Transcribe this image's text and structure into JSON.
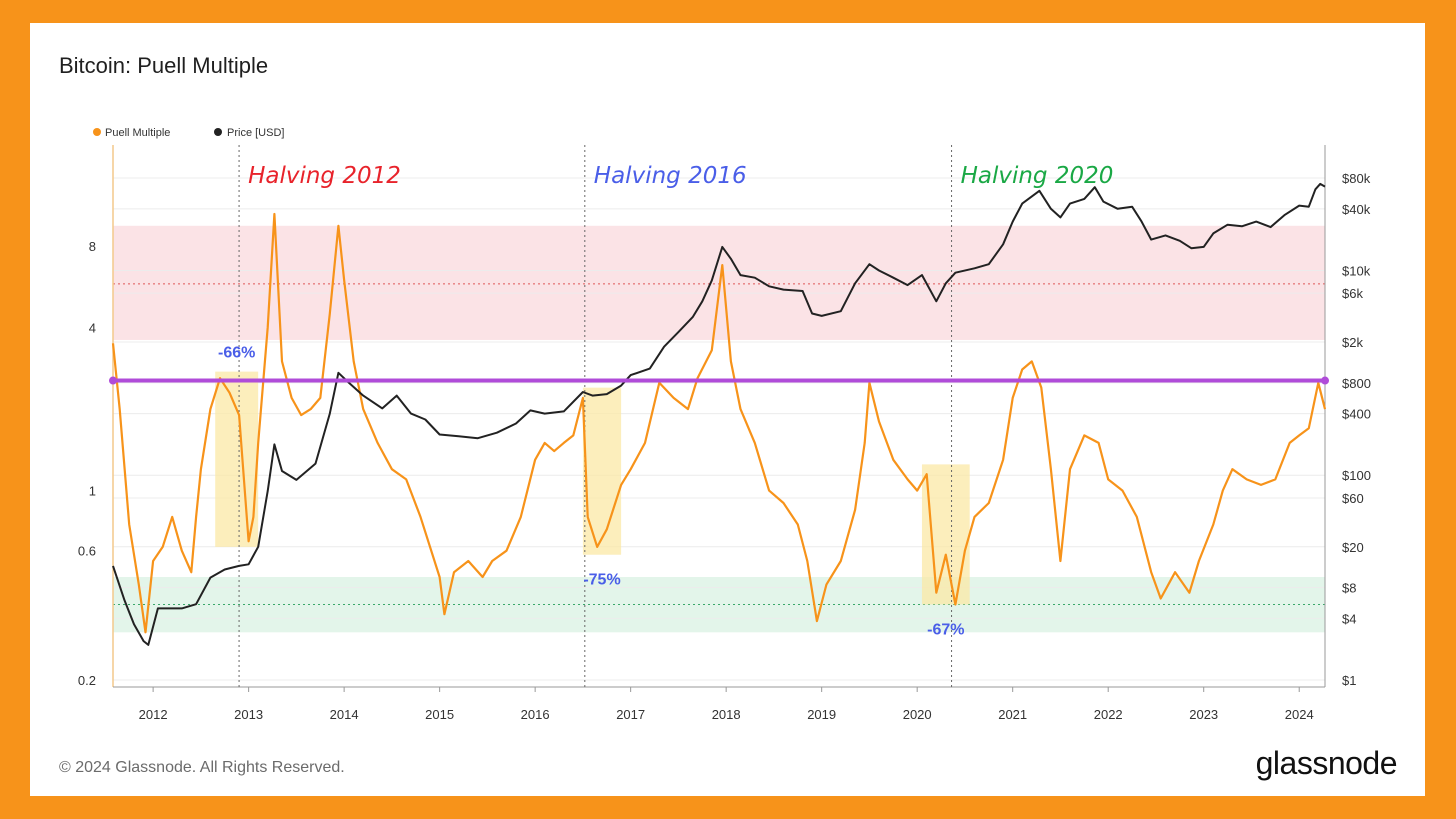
{
  "page": {
    "title": "Bitcoin: Puell Multiple",
    "footer": "© 2024 Glassnode. All Rights Reserved.",
    "logo": "glassnode"
  },
  "colors": {
    "frame": "#F7931A",
    "puell": "#F7931A",
    "price": "#222222",
    "high_band": "#fbe3e6",
    "low_band": "#e3f5ea",
    "threshold_line": "#b04cd9",
    "halving_2012": "#e8232b",
    "halving_2016": "#4a5ee8",
    "halving_2020": "#1aa845",
    "drawdown_box": "#fbe8a6",
    "pct_label": "#4a5ee8"
  },
  "chart_data": {
    "type": "line",
    "title": "Bitcoin: Puell Multiple",
    "legend": [
      "Puell Multiple",
      "Price [USD]"
    ],
    "legend_placement": "top-left",
    "x_ticks": [
      "2012",
      "2013",
      "2014",
      "2015",
      "2016",
      "2017",
      "2018",
      "2019",
      "2020",
      "2021",
      "2022",
      "2023",
      "2024"
    ],
    "y_left": {
      "scale": "log",
      "ticks": [
        "0.2",
        "0.6",
        "1",
        "4",
        "8"
      ],
      "range": [
        0.2,
        16
      ]
    },
    "y_right": {
      "scale": "log",
      "ticks": [
        "$1",
        "$4",
        "$8",
        "$20",
        "$60",
        "$100",
        "$400",
        "$800",
        "$2k",
        "$6k",
        "$10k",
        "$40k",
        "$80k"
      ],
      "range": [
        1,
        120000
      ]
    },
    "halvings": [
      {
        "label": "Halving 2012",
        "date": 2012.9
      },
      {
        "label": "Halving 2016",
        "date": 2016.52
      },
      {
        "label": "Halving 2020",
        "date": 2020.36
      }
    ],
    "drawdowns": [
      {
        "label": "-66%",
        "from": 2012.65,
        "to": 2013.1,
        "top": 2.75,
        "bottom": 0.62
      },
      {
        "label": "-75%",
        "from": 2016.5,
        "to": 2016.9,
        "top": 2.4,
        "bottom": 0.58
      },
      {
        "label": "-67%",
        "from": 2020.05,
        "to": 2020.55,
        "top": 1.25,
        "bottom": 0.38
      }
    ],
    "bands": {
      "high": [
        3.6,
        9.5
      ],
      "low": [
        0.3,
        0.48
      ]
    },
    "threshold": 2.55,
    "series": [
      {
        "name": "Puell Multiple",
        "points": [
          [
            2011.58,
            3.5
          ],
          [
            2011.65,
            2.0
          ],
          [
            2011.75,
            0.75
          ],
          [
            2011.85,
            0.45
          ],
          [
            2011.92,
            0.3
          ],
          [
            2012.0,
            0.55
          ],
          [
            2012.1,
            0.62
          ],
          [
            2012.2,
            0.8
          ],
          [
            2012.3,
            0.6
          ],
          [
            2012.4,
            0.5
          ],
          [
            2012.45,
            0.8
          ],
          [
            2012.5,
            1.2
          ],
          [
            2012.6,
            2.0
          ],
          [
            2012.7,
            2.6
          ],
          [
            2012.8,
            2.3
          ],
          [
            2012.9,
            1.9
          ],
          [
            2013.0,
            0.65
          ],
          [
            2013.05,
            0.8
          ],
          [
            2013.1,
            1.5
          ],
          [
            2013.2,
            4.0
          ],
          [
            2013.27,
            10.5
          ],
          [
            2013.35,
            3.0
          ],
          [
            2013.45,
            2.2
          ],
          [
            2013.55,
            1.9
          ],
          [
            2013.65,
            2.0
          ],
          [
            2013.75,
            2.2
          ],
          [
            2013.85,
            4.5
          ],
          [
            2013.94,
            9.5
          ],
          [
            2014.0,
            6.0
          ],
          [
            2014.1,
            3.0
          ],
          [
            2014.2,
            2.0
          ],
          [
            2014.35,
            1.5
          ],
          [
            2014.5,
            1.2
          ],
          [
            2014.65,
            1.1
          ],
          [
            2014.8,
            0.8
          ],
          [
            2015.0,
            0.48
          ],
          [
            2015.05,
            0.35
          ],
          [
            2015.15,
            0.5
          ],
          [
            2015.3,
            0.55
          ],
          [
            2015.45,
            0.48
          ],
          [
            2015.55,
            0.55
          ],
          [
            2015.7,
            0.6
          ],
          [
            2015.85,
            0.8
          ],
          [
            2016.0,
            1.3
          ],
          [
            2016.1,
            1.5
          ],
          [
            2016.2,
            1.4
          ],
          [
            2016.3,
            1.5
          ],
          [
            2016.4,
            1.6
          ],
          [
            2016.5,
            2.2
          ],
          [
            2016.55,
            0.8
          ],
          [
            2016.65,
            0.62
          ],
          [
            2016.75,
            0.72
          ],
          [
            2016.9,
            1.05
          ],
          [
            2017.0,
            1.2
          ],
          [
            2017.15,
            1.5
          ],
          [
            2017.3,
            2.5
          ],
          [
            2017.45,
            2.2
          ],
          [
            2017.6,
            2.0
          ],
          [
            2017.7,
            2.6
          ],
          [
            2017.85,
            3.3
          ],
          [
            2017.96,
            6.8
          ],
          [
            2018.05,
            3.0
          ],
          [
            2018.15,
            2.0
          ],
          [
            2018.3,
            1.5
          ],
          [
            2018.45,
            1.0
          ],
          [
            2018.6,
            0.9
          ],
          [
            2018.75,
            0.75
          ],
          [
            2018.85,
            0.55
          ],
          [
            2018.95,
            0.33
          ],
          [
            2019.05,
            0.45
          ],
          [
            2019.2,
            0.55
          ],
          [
            2019.35,
            0.85
          ],
          [
            2019.45,
            1.5
          ],
          [
            2019.5,
            2.5
          ],
          [
            2019.6,
            1.8
          ],
          [
            2019.75,
            1.3
          ],
          [
            2019.9,
            1.1
          ],
          [
            2020.0,
            1.0
          ],
          [
            2020.1,
            1.15
          ],
          [
            2020.2,
            0.42
          ],
          [
            2020.3,
            0.58
          ],
          [
            2020.4,
            0.38
          ],
          [
            2020.5,
            0.6
          ],
          [
            2020.6,
            0.8
          ],
          [
            2020.75,
            0.9
          ],
          [
            2020.9,
            1.3
          ],
          [
            2021.0,
            2.2
          ],
          [
            2021.1,
            2.8
          ],
          [
            2021.2,
            3.0
          ],
          [
            2021.3,
            2.4
          ],
          [
            2021.4,
            1.2
          ],
          [
            2021.5,
            0.55
          ],
          [
            2021.6,
            1.2
          ],
          [
            2021.75,
            1.6
          ],
          [
            2021.9,
            1.5
          ],
          [
            2022.0,
            1.1
          ],
          [
            2022.15,
            1.0
          ],
          [
            2022.3,
            0.8
          ],
          [
            2022.45,
            0.5
          ],
          [
            2022.55,
            0.4
          ],
          [
            2022.7,
            0.5
          ],
          [
            2022.85,
            0.42
          ],
          [
            2022.95,
            0.55
          ],
          [
            2023.1,
            0.75
          ],
          [
            2023.2,
            1.0
          ],
          [
            2023.3,
            1.2
          ],
          [
            2023.45,
            1.1
          ],
          [
            2023.6,
            1.05
          ],
          [
            2023.75,
            1.1
          ],
          [
            2023.9,
            1.5
          ],
          [
            2024.0,
            1.6
          ],
          [
            2024.1,
            1.7
          ],
          [
            2024.2,
            2.5
          ],
          [
            2024.27,
            2.0
          ]
        ]
      },
      {
        "name": "Price [USD]",
        "points": [
          [
            2011.58,
            13
          ],
          [
            2011.7,
            6
          ],
          [
            2011.8,
            3.5
          ],
          [
            2011.9,
            2.4
          ],
          [
            2011.95,
            2.2
          ],
          [
            2012.05,
            5
          ],
          [
            2012.15,
            5
          ],
          [
            2012.3,
            5
          ],
          [
            2012.45,
            5.5
          ],
          [
            2012.6,
            10
          ],
          [
            2012.75,
            12
          ],
          [
            2012.9,
            13
          ],
          [
            2013.0,
            13.5
          ],
          [
            2013.1,
            20
          ],
          [
            2013.2,
            70
          ],
          [
            2013.27,
            200
          ],
          [
            2013.35,
            110
          ],
          [
            2013.5,
            90
          ],
          [
            2013.7,
            130
          ],
          [
            2013.85,
            400
          ],
          [
            2013.94,
            1000
          ],
          [
            2014.05,
            800
          ],
          [
            2014.2,
            600
          ],
          [
            2014.4,
            450
          ],
          [
            2014.55,
            600
          ],
          [
            2014.7,
            400
          ],
          [
            2014.85,
            350
          ],
          [
            2015.0,
            250
          ],
          [
            2015.2,
            240
          ],
          [
            2015.4,
            230
          ],
          [
            2015.6,
            260
          ],
          [
            2015.8,
            320
          ],
          [
            2015.95,
            430
          ],
          [
            2016.1,
            400
          ],
          [
            2016.3,
            420
          ],
          [
            2016.5,
            650
          ],
          [
            2016.6,
            600
          ],
          [
            2016.75,
            620
          ],
          [
            2016.9,
            750
          ],
          [
            2017.0,
            950
          ],
          [
            2017.2,
            1100
          ],
          [
            2017.35,
            1800
          ],
          [
            2017.5,
            2500
          ],
          [
            2017.65,
            3500
          ],
          [
            2017.75,
            5000
          ],
          [
            2017.85,
            8000
          ],
          [
            2017.96,
            17000
          ],
          [
            2018.05,
            13000
          ],
          [
            2018.15,
            9000
          ],
          [
            2018.3,
            8500
          ],
          [
            2018.45,
            7000
          ],
          [
            2018.6,
            6500
          ],
          [
            2018.8,
            6300
          ],
          [
            2018.9,
            3800
          ],
          [
            2019.0,
            3600
          ],
          [
            2019.2,
            4000
          ],
          [
            2019.35,
            7500
          ],
          [
            2019.5,
            11500
          ],
          [
            2019.6,
            10000
          ],
          [
            2019.75,
            8500
          ],
          [
            2019.9,
            7200
          ],
          [
            2020.05,
            9000
          ],
          [
            2020.2,
            5000
          ],
          [
            2020.3,
            7500
          ],
          [
            2020.4,
            9500
          ],
          [
            2020.6,
            10500
          ],
          [
            2020.75,
            11500
          ],
          [
            2020.9,
            18000
          ],
          [
            2021.0,
            30000
          ],
          [
            2021.1,
            45000
          ],
          [
            2021.28,
            60000
          ],
          [
            2021.4,
            40000
          ],
          [
            2021.5,
            33000
          ],
          [
            2021.6,
            45000
          ],
          [
            2021.75,
            50000
          ],
          [
            2021.86,
            65000
          ],
          [
            2021.95,
            47000
          ],
          [
            2022.1,
            40000
          ],
          [
            2022.25,
            42000
          ],
          [
            2022.35,
            30000
          ],
          [
            2022.45,
            20000
          ],
          [
            2022.6,
            22000
          ],
          [
            2022.75,
            19500
          ],
          [
            2022.87,
            16500
          ],
          [
            2023.0,
            17000
          ],
          [
            2023.1,
            23000
          ],
          [
            2023.25,
            28000
          ],
          [
            2023.4,
            27000
          ],
          [
            2023.55,
            30000
          ],
          [
            2023.7,
            26500
          ],
          [
            2023.85,
            35000
          ],
          [
            2024.0,
            43000
          ],
          [
            2024.1,
            42000
          ],
          [
            2024.17,
            62000
          ],
          [
            2024.22,
            70000
          ],
          [
            2024.27,
            66000
          ]
        ]
      }
    ]
  }
}
